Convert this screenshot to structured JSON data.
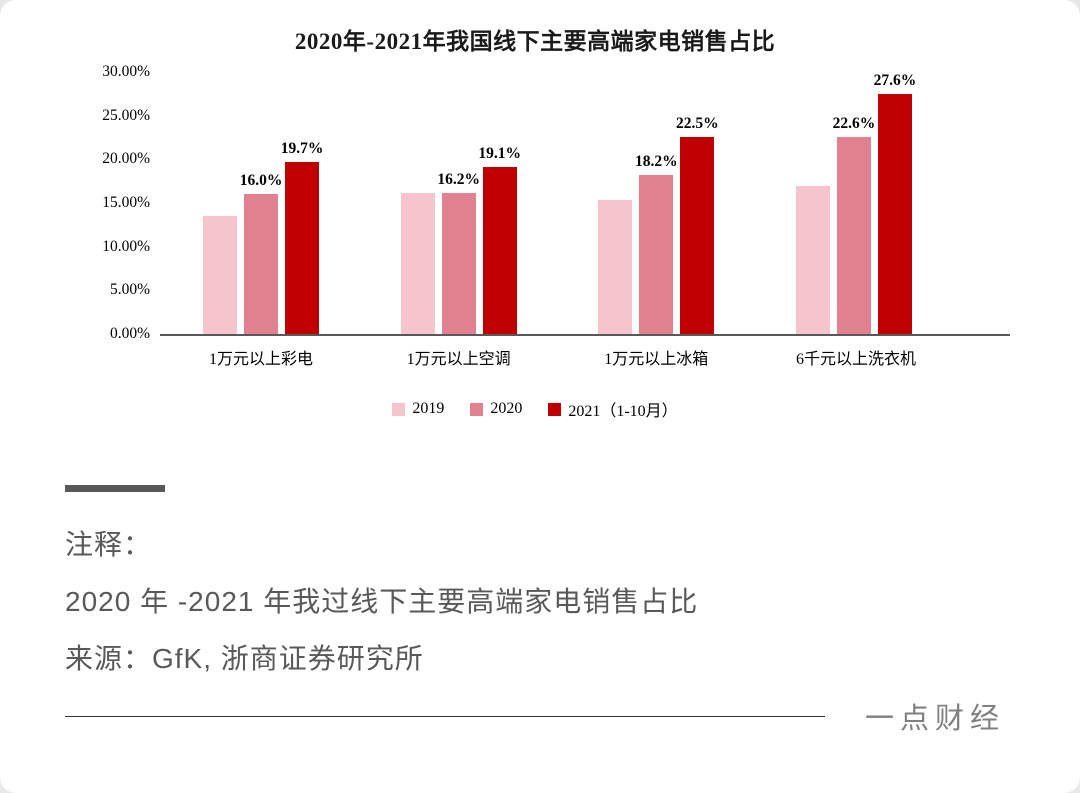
{
  "chart_data": {
    "type": "bar",
    "title": "2020年-2021年我国线下主要高端家电销售占比",
    "categories": [
      "1万元以上彩电",
      "1万元以上空调",
      "1万元以上冰箱",
      "6千元以上洗衣机"
    ],
    "series": [
      {
        "name": "2019",
        "color": "#f5c4cd",
        "values": [
          13.5,
          16.1,
          15.4,
          17.0
        ],
        "labels": [
          "",
          "",
          "",
          ""
        ]
      },
      {
        "name": "2020",
        "color": "#e1808f",
        "values": [
          16.0,
          16.2,
          18.2,
          22.6
        ],
        "labels": [
          "16.0%",
          "16.2%",
          "18.2%",
          "22.6%"
        ]
      },
      {
        "name": "2021（1-10月）",
        "color": "#c00000",
        "values": [
          19.7,
          19.1,
          22.5,
          27.6
        ],
        "labels": [
          "19.7%",
          "19.1%",
          "22.5%",
          "27.6%"
        ]
      }
    ],
    "xlabel": "",
    "ylabel": "",
    "ylim": [
      0,
      30
    ],
    "yticks": [
      "30.00%",
      "25.00%",
      "20.00%",
      "15.00%",
      "10.00%",
      "5.00%",
      "0.00%"
    ],
    "grid": false,
    "legend_position": "bottom"
  },
  "notes": {
    "label": "注释：",
    "line1": "2020 年 -2021 年我过线下主要高端家电销售占比",
    "source": "来源：GfK, 浙商证券研究所"
  },
  "footer": {
    "brand": "一点财经"
  }
}
